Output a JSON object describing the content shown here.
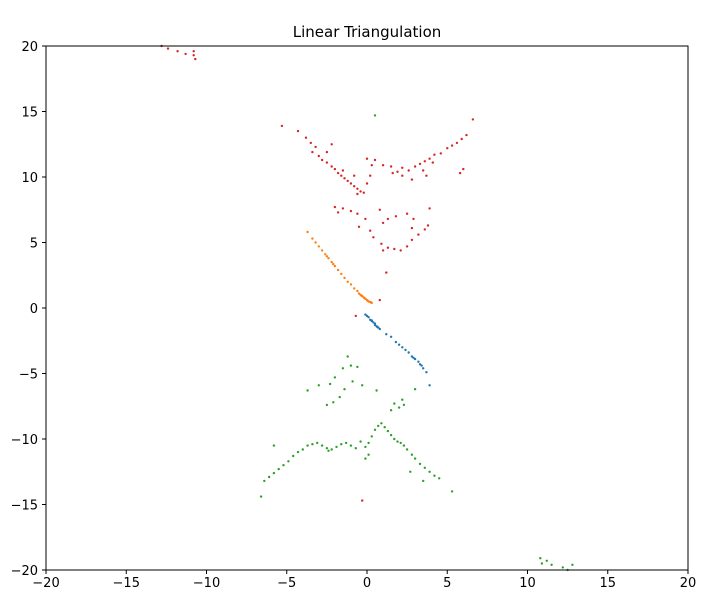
{
  "chart_data": {
    "type": "scatter",
    "title": "Linear Triangulation",
    "xlabel": "",
    "ylabel": "",
    "xlim": [
      -20,
      20
    ],
    "ylim": [
      -20,
      20
    ],
    "xticks": [
      -20,
      -15,
      -10,
      -5,
      0,
      5,
      10,
      15,
      20
    ],
    "yticks": [
      -20,
      -15,
      -10,
      -5,
      0,
      5,
      10,
      15,
      20
    ],
    "xtick_labels": [
      "−20",
      "−15",
      "−10",
      "−5",
      "0",
      "5",
      "10",
      "15",
      "20"
    ],
    "ytick_labels": [
      "−20",
      "−15",
      "−10",
      "−5",
      "0",
      "5",
      "10",
      "15",
      "20"
    ],
    "grid": false,
    "legend": "none",
    "series": [
      {
        "color": "#1f77b4",
        "marker_size": 1.2,
        "points": [
          [
            -0.1,
            -0.5
          ],
          [
            0.0,
            -0.6
          ],
          [
            0.1,
            -0.7
          ],
          [
            0.2,
            -0.9
          ],
          [
            0.3,
            -1.0
          ],
          [
            0.4,
            -1.1
          ],
          [
            0.5,
            -1.2
          ],
          [
            0.6,
            -1.4
          ],
          [
            0.7,
            -1.5
          ],
          [
            0.8,
            -1.6
          ],
          [
            0.5,
            -1.3
          ],
          [
            0.3,
            -0.95
          ],
          [
            0.65,
            -1.45
          ],
          [
            1.2,
            -2.0
          ],
          [
            1.5,
            -2.2
          ],
          [
            1.8,
            -2.6
          ],
          [
            2.0,
            -2.8
          ],
          [
            2.2,
            -3.0
          ],
          [
            2.4,
            -3.2
          ],
          [
            2.6,
            -3.4
          ],
          [
            2.8,
            -3.7
          ],
          [
            3.0,
            -3.9
          ],
          [
            3.2,
            -4.1
          ],
          [
            3.3,
            -4.3
          ],
          [
            3.5,
            -4.6
          ],
          [
            3.7,
            -4.9
          ],
          [
            2.9,
            -3.8
          ],
          [
            3.4,
            -4.4
          ],
          [
            3.9,
            -5.9
          ]
        ]
      },
      {
        "color": "#ff7f0e",
        "marker_size": 1.2,
        "points": [
          [
            -3.7,
            5.8
          ],
          [
            -3.4,
            5.3
          ],
          [
            -3.2,
            5.0
          ],
          [
            -3.0,
            4.7
          ],
          [
            -2.8,
            4.4
          ],
          [
            -2.6,
            4.1
          ],
          [
            -2.4,
            3.8
          ],
          [
            -2.2,
            3.5
          ],
          [
            -2.0,
            3.2
          ],
          [
            -1.8,
            2.9
          ],
          [
            -1.6,
            2.6
          ],
          [
            -1.4,
            2.3
          ],
          [
            -1.2,
            2.0
          ],
          [
            -1.0,
            1.8
          ],
          [
            -0.8,
            1.5
          ],
          [
            -0.6,
            1.3
          ],
          [
            -0.5,
            1.1
          ],
          [
            -0.4,
            1.0
          ],
          [
            -0.3,
            0.9
          ],
          [
            -0.2,
            0.8
          ],
          [
            -0.1,
            0.7
          ],
          [
            0.0,
            0.6
          ],
          [
            0.1,
            0.5
          ],
          [
            0.2,
            0.45
          ],
          [
            0.3,
            0.4
          ],
          [
            -0.35,
            0.95
          ],
          [
            -0.15,
            0.75
          ],
          [
            0.05,
            0.55
          ],
          [
            0.25,
            0.42
          ],
          [
            -2.5,
            3.95
          ],
          [
            -2.1,
            3.35
          ]
        ]
      },
      {
        "color": "#2ca02c",
        "marker_size": 1.2,
        "points": [
          [
            -6.4,
            -13.2
          ],
          [
            -6.1,
            -12.9
          ],
          [
            -5.8,
            -12.6
          ],
          [
            -5.5,
            -12.3
          ],
          [
            -5.2,
            -12.0
          ],
          [
            -4.9,
            -11.7
          ],
          [
            -4.6,
            -11.3
          ],
          [
            -4.3,
            -11.0
          ],
          [
            -4.0,
            -10.8
          ],
          [
            -3.7,
            -10.5
          ],
          [
            -3.4,
            -10.4
          ],
          [
            -3.1,
            -10.3
          ],
          [
            -2.8,
            -10.5
          ],
          [
            -2.5,
            -10.7
          ],
          [
            -2.2,
            -10.8
          ],
          [
            -1.9,
            -10.6
          ],
          [
            -1.6,
            -10.4
          ],
          [
            -1.3,
            -10.3
          ],
          [
            -1.0,
            -10.5
          ],
          [
            -0.7,
            -10.7
          ],
          [
            -0.4,
            -10.2
          ],
          [
            -0.1,
            -10.6
          ],
          [
            0.1,
            -10.3
          ],
          [
            0.3,
            -9.8
          ],
          [
            0.5,
            -9.3
          ],
          [
            0.7,
            -9.0
          ],
          [
            0.9,
            -8.8
          ],
          [
            1.1,
            -9.1
          ],
          [
            1.3,
            -9.4
          ],
          [
            1.5,
            -9.7
          ],
          [
            1.7,
            -10.0
          ],
          [
            1.9,
            -10.2
          ],
          [
            2.1,
            -10.3
          ],
          [
            2.3,
            -10.5
          ],
          [
            2.5,
            -10.8
          ],
          [
            2.8,
            -11.2
          ],
          [
            3.0,
            -11.5
          ],
          [
            3.3,
            -11.9
          ],
          [
            3.6,
            -12.2
          ],
          [
            3.9,
            -12.5
          ],
          [
            4.2,
            -12.8
          ],
          [
            2.7,
            -12.5
          ],
          [
            3.5,
            -13.2
          ],
          [
            4.5,
            -13.0
          ],
          [
            5.3,
            -14.0
          ],
          [
            -6.6,
            -14.4
          ],
          [
            -5.8,
            -10.5
          ],
          [
            -2.4,
            -10.9
          ],
          [
            -0.1,
            -11.5
          ],
          [
            0.1,
            -11.2
          ],
          [
            -2.3,
            -5.8
          ],
          [
            -2.0,
            -5.3
          ],
          [
            -1.5,
            -4.6
          ],
          [
            -1.0,
            -4.4
          ],
          [
            -0.6,
            -4.5
          ],
          [
            -0.9,
            -5.6
          ],
          [
            -1.4,
            -6.2
          ],
          [
            -1.7,
            -6.8
          ],
          [
            -2.1,
            -7.2
          ],
          [
            -2.5,
            -7.4
          ],
          [
            -3.7,
            -6.3
          ],
          [
            -3.0,
            -5.9
          ],
          [
            -1.2,
            -3.7
          ],
          [
            -0.3,
            -5.9
          ],
          [
            0.6,
            -6.3
          ],
          [
            2.2,
            -7.0
          ],
          [
            2.3,
            -7.4
          ],
          [
            2.0,
            -7.6
          ],
          [
            1.7,
            -7.3
          ],
          [
            1.5,
            -7.8
          ],
          [
            3.0,
            -6.2
          ],
          [
            0.5,
            14.7
          ],
          [
            10.8,
            -19.1
          ],
          [
            10.9,
            -19.5
          ],
          [
            11.2,
            -19.3
          ],
          [
            11.5,
            -19.6
          ],
          [
            12.2,
            -19.8
          ],
          [
            12.5,
            -20.0
          ],
          [
            12.8,
            -19.6
          ]
        ]
      },
      {
        "color": "#d62728",
        "marker_size": 1.2,
        "points": [
          [
            -5.3,
            13.9
          ],
          [
            -4.3,
            13.5
          ],
          [
            -3.8,
            13.0
          ],
          [
            -3.5,
            12.6
          ],
          [
            -3.2,
            12.3
          ],
          [
            -3.4,
            11.9
          ],
          [
            -3.0,
            11.6
          ],
          [
            -2.8,
            11.3
          ],
          [
            -2.5,
            11.1
          ],
          [
            -2.2,
            10.8
          ],
          [
            -2.0,
            10.6
          ],
          [
            -1.8,
            10.3
          ],
          [
            -1.6,
            10.1
          ],
          [
            -1.4,
            9.9
          ],
          [
            -1.2,
            9.7
          ],
          [
            -1.0,
            9.5
          ],
          [
            -0.8,
            9.3
          ],
          [
            -0.6,
            9.1
          ],
          [
            -0.4,
            8.9
          ],
          [
            -0.2,
            8.8
          ],
          [
            -0.6,
            8.7
          ],
          [
            -2.2,
            12.5
          ],
          [
            -2.5,
            11.9
          ],
          [
            -1.5,
            10.5
          ],
          [
            0.0,
            9.5
          ],
          [
            0.2,
            10.1
          ],
          [
            0.3,
            10.9
          ],
          [
            0.5,
            11.3
          ],
          [
            0.0,
            11.4
          ],
          [
            -0.8,
            10.1
          ],
          [
            1.0,
            10.9
          ],
          [
            1.5,
            10.8
          ],
          [
            1.9,
            10.4
          ],
          [
            2.2,
            10.1
          ],
          [
            2.6,
            10.5
          ],
          [
            3.0,
            10.8
          ],
          [
            3.3,
            11.0
          ],
          [
            3.6,
            11.2
          ],
          [
            3.9,
            11.4
          ],
          [
            4.2,
            11.7
          ],
          [
            4.6,
            11.8
          ],
          [
            5.0,
            12.2
          ],
          [
            5.3,
            12.4
          ],
          [
            5.6,
            12.6
          ],
          [
            5.9,
            12.9
          ],
          [
            6.2,
            13.2
          ],
          [
            6.6,
            14.4
          ],
          [
            3.5,
            10.5
          ],
          [
            2.8,
            9.8
          ],
          [
            1.6,
            10.3
          ],
          [
            2.2,
            10.7
          ],
          [
            3.7,
            10.1
          ],
          [
            4.1,
            11.1
          ],
          [
            5.8,
            10.3
          ],
          [
            6.0,
            10.6
          ],
          [
            -1.5,
            7.6
          ],
          [
            -1.0,
            7.4
          ],
          [
            -0.6,
            7.2
          ],
          [
            -1.8,
            7.3
          ],
          [
            -2.0,
            7.7
          ],
          [
            -0.5,
            6.2
          ],
          [
            0.2,
            5.9
          ],
          [
            0.4,
            5.4
          ],
          [
            0.9,
            4.9
          ],
          [
            1.3,
            4.6
          ],
          [
            1.7,
            4.5
          ],
          [
            2.1,
            4.4
          ],
          [
            2.5,
            4.7
          ],
          [
            2.8,
            5.2
          ],
          [
            3.2,
            5.6
          ],
          [
            3.6,
            6.0
          ],
          [
            3.8,
            6.3
          ],
          [
            1.0,
            6.5
          ],
          [
            1.3,
            6.8
          ],
          [
            1.8,
            7.0
          ],
          [
            2.5,
            7.2
          ],
          [
            2.9,
            6.8
          ],
          [
            0.8,
            7.5
          ],
          [
            -0.1,
            6.8
          ],
          [
            1.0,
            4.4
          ],
          [
            2.8,
            6.1
          ],
          [
            3.9,
            7.6
          ],
          [
            1.2,
            2.7
          ],
          [
            -12.8,
            20.0
          ],
          [
            -12.4,
            19.8
          ],
          [
            -11.8,
            19.6
          ],
          [
            -11.3,
            19.4
          ],
          [
            -10.8,
            19.3
          ],
          [
            -10.8,
            19.6
          ],
          [
            -10.7,
            19.0
          ],
          [
            -0.3,
            -14.7
          ],
          [
            -0.7,
            -0.6
          ],
          [
            0.8,
            0.6
          ]
        ]
      }
    ]
  }
}
